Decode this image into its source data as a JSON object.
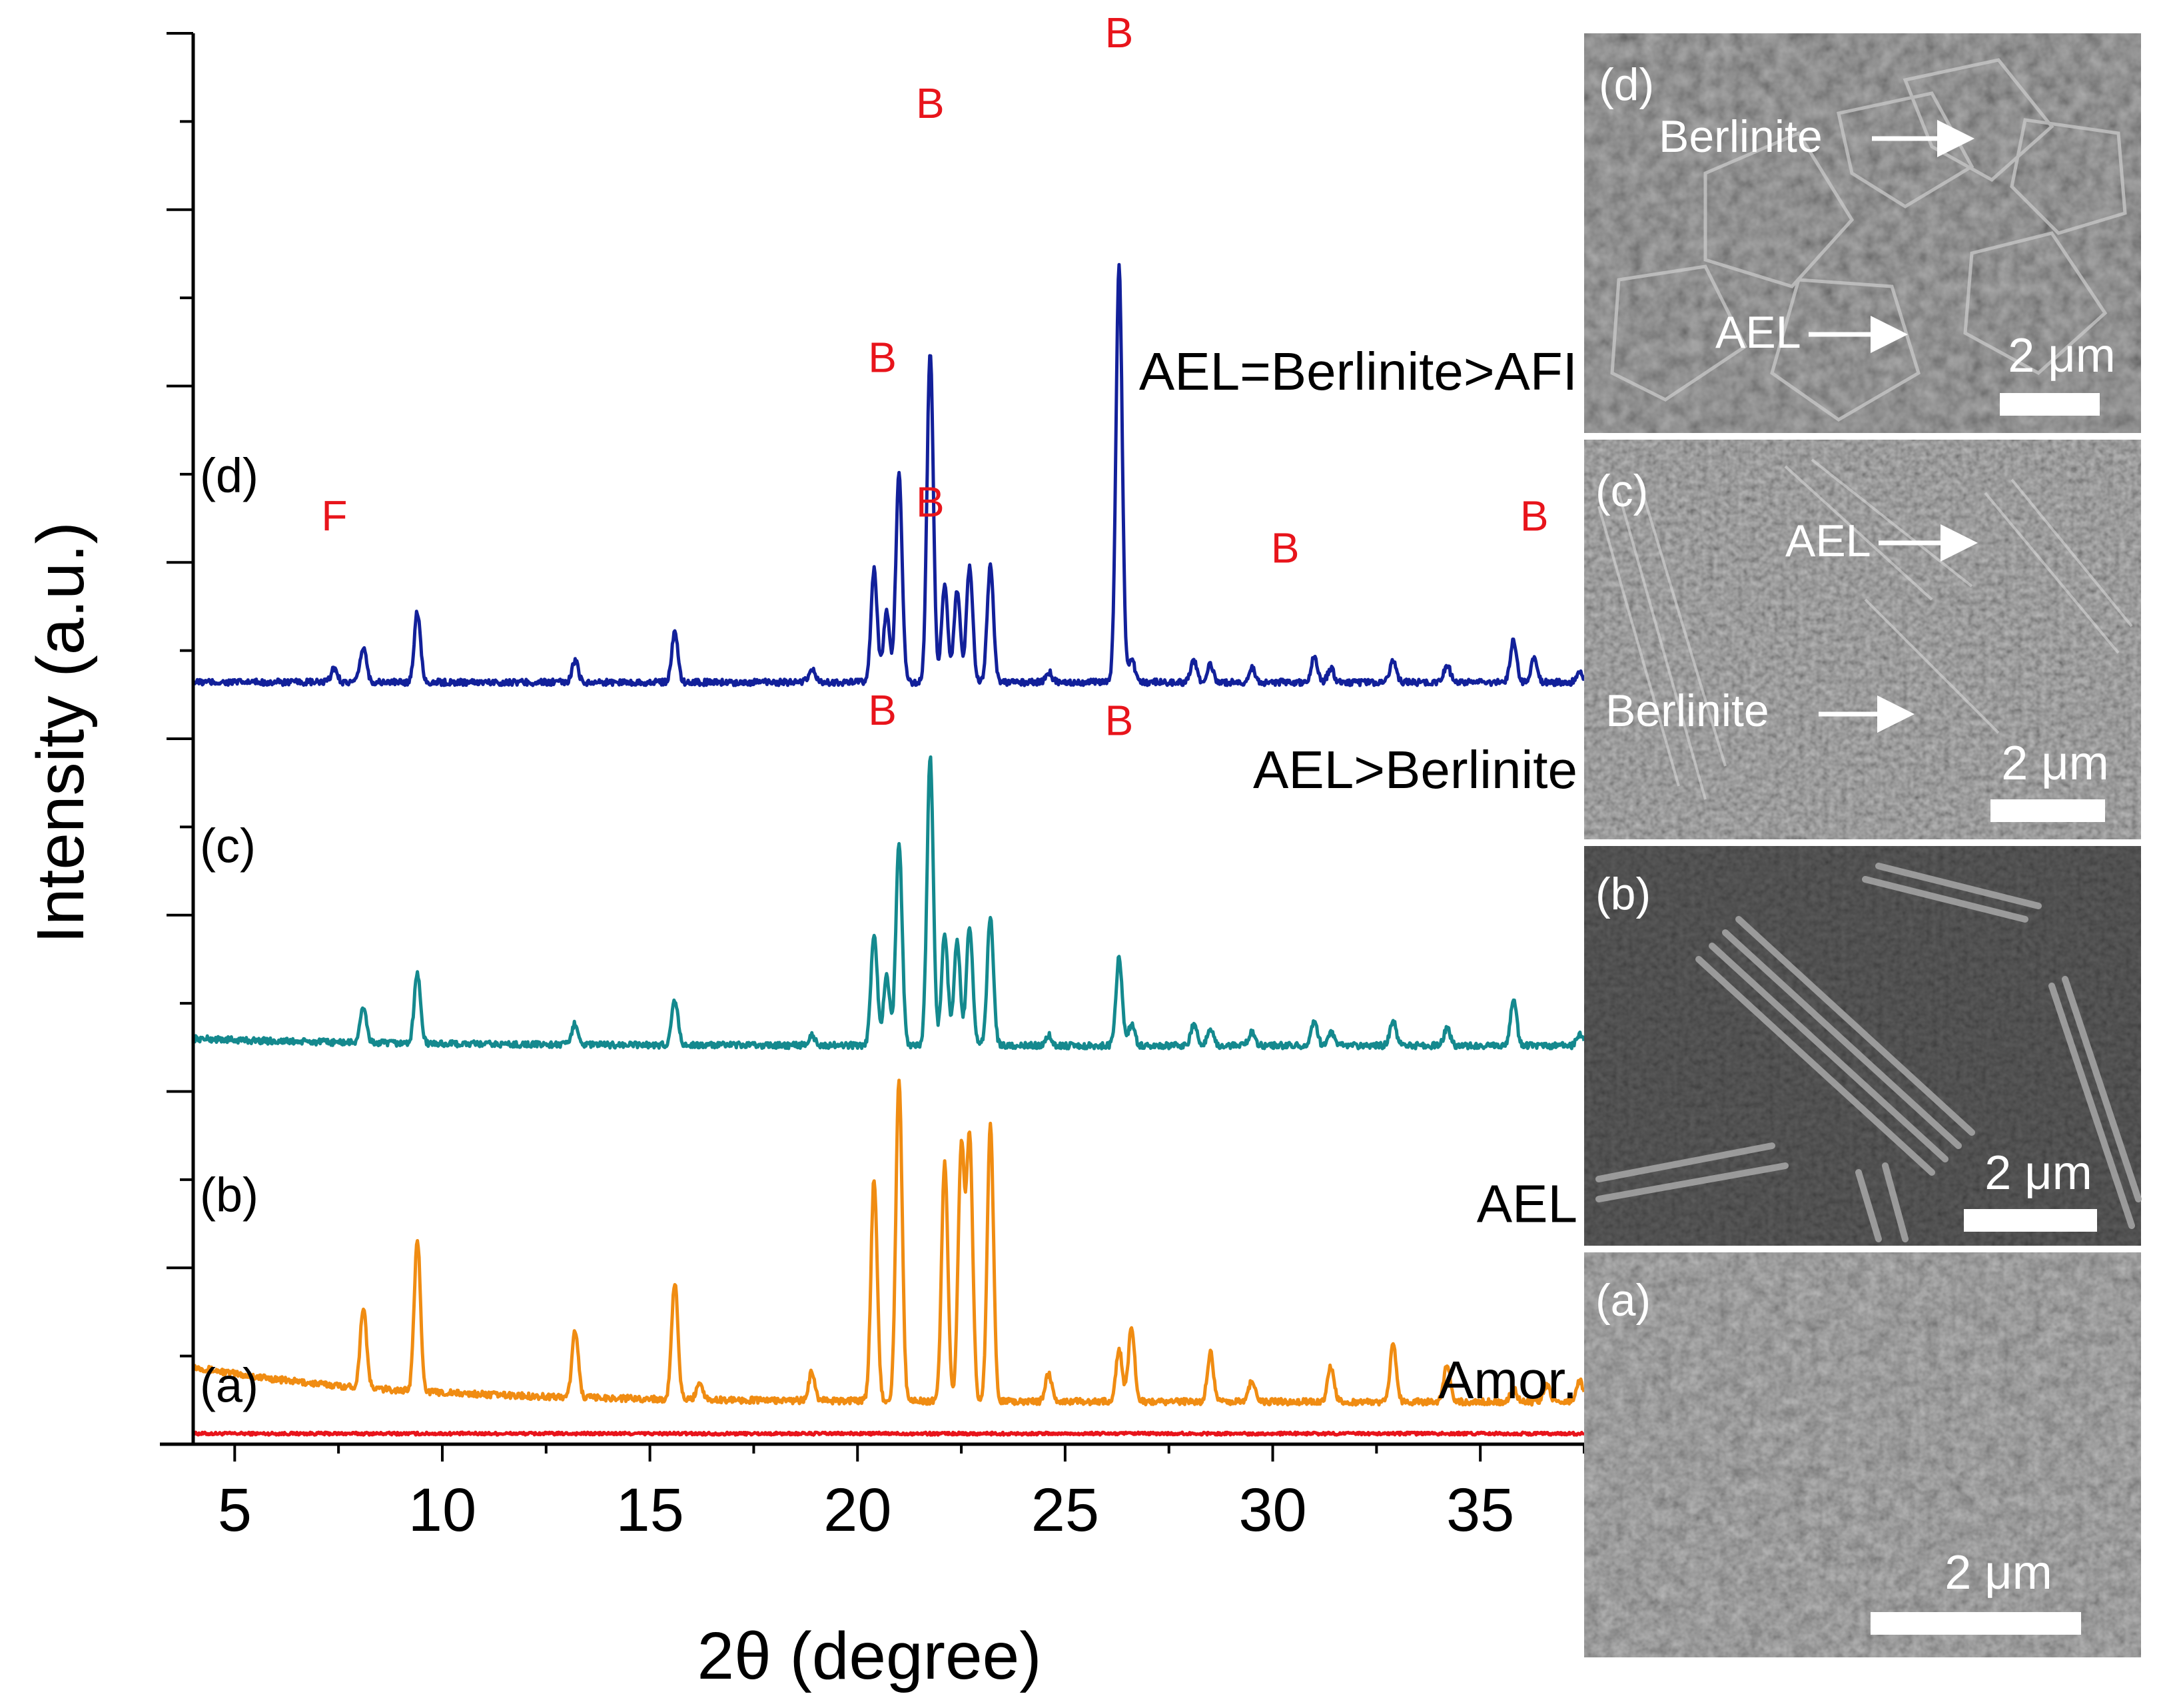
{
  "chart_data": {
    "type": "line",
    "xlabel": "2θ (degree)",
    "ylabel": "Intensity (a.u.)",
    "xlim": [
      4,
      37.5
    ],
    "xticks": [
      "5",
      "10",
      "15",
      "20",
      "25",
      "30",
      "35"
    ],
    "series": [
      {
        "id": "a",
        "name": "(a)",
        "phase": "Amor.",
        "color": "#e8141b",
        "baseline": 0.3,
        "slope": 0,
        "peaks": []
      },
      {
        "id": "b",
        "name": "(b)",
        "phase": "AEL",
        "color": "#f08c12",
        "baseline": 1.2,
        "slope": 1.0,
        "peaks": [
          [
            8.1,
            2.3
          ],
          [
            9.4,
            4.3
          ],
          [
            13.2,
            1.9
          ],
          [
            15.6,
            3.3
          ],
          [
            16.2,
            0.5
          ],
          [
            18.9,
            0.8
          ],
          [
            20.4,
            6.3
          ],
          [
            21.0,
            9.1
          ],
          [
            22.1,
            6.8
          ],
          [
            22.5,
            7.2
          ],
          [
            22.7,
            7.4
          ],
          [
            23.2,
            7.9
          ],
          [
            24.6,
            0.8
          ],
          [
            26.3,
            1.5
          ],
          [
            26.6,
            2.1
          ],
          [
            28.5,
            1.4
          ],
          [
            29.5,
            0.6
          ],
          [
            31.4,
            1.0
          ],
          [
            32.9,
            1.6
          ],
          [
            34.2,
            1.1
          ],
          [
            35.8,
            0.4
          ],
          [
            36.6,
            0.5
          ],
          [
            37.4,
            0.6
          ]
        ]
      },
      {
        "id": "c",
        "name": "(c)",
        "phase": "AEL>Berlinite",
        "color": "#14898e",
        "baseline": 11.3,
        "slope": 0.2,
        "peaks": [
          [
            8.1,
            1.0
          ],
          [
            9.4,
            2.0
          ],
          [
            13.2,
            0.6
          ],
          [
            15.6,
            1.3
          ],
          [
            18.9,
            0.3
          ],
          [
            20.4,
            3.2
          ],
          [
            20.7,
            2.0
          ],
          [
            21.0,
            5.7
          ],
          [
            21.75,
            8.2
          ],
          [
            22.1,
            3.2
          ],
          [
            22.4,
            3.0
          ],
          [
            22.7,
            3.4
          ],
          [
            23.2,
            3.7
          ],
          [
            24.6,
            0.3
          ],
          [
            26.3,
            2.5
          ],
          [
            26.6,
            0.6
          ],
          [
            28.1,
            0.6
          ],
          [
            28.5,
            0.5
          ],
          [
            29.5,
            0.4
          ],
          [
            31.0,
            0.7
          ],
          [
            31.4,
            0.4
          ],
          [
            32.9,
            0.7
          ],
          [
            34.2,
            0.5
          ],
          [
            35.8,
            1.3
          ],
          [
            37.4,
            0.3
          ]
        ]
      },
      {
        "id": "d",
        "name": "(d)",
        "phase": "AEL=Berlinite>AFI",
        "color": "#12209a",
        "baseline": 21.6,
        "slope": 0,
        "peaks": [
          [
            7.4,
            0.4
          ],
          [
            8.1,
            1.0
          ],
          [
            9.4,
            2.0
          ],
          [
            13.2,
            0.6
          ],
          [
            15.6,
            1.4
          ],
          [
            18.9,
            0.4
          ],
          [
            20.4,
            3.2
          ],
          [
            20.7,
            2.0
          ],
          [
            21.0,
            5.9
          ],
          [
            21.75,
            9.4
          ],
          [
            22.1,
            2.7
          ],
          [
            22.4,
            2.6
          ],
          [
            22.7,
            3.3
          ],
          [
            23.2,
            3.3
          ],
          [
            24.6,
            0.3
          ],
          [
            26.3,
            11.8
          ],
          [
            26.6,
            0.7
          ],
          [
            28.1,
            0.6
          ],
          [
            28.5,
            0.5
          ],
          [
            29.5,
            0.4
          ],
          [
            31.0,
            0.7
          ],
          [
            31.4,
            0.4
          ],
          [
            32.9,
            0.6
          ],
          [
            34.2,
            0.5
          ],
          [
            35.8,
            1.2
          ],
          [
            36.3,
            0.7
          ],
          [
            37.4,
            0.3
          ]
        ]
      }
    ],
    "ylim": [
      0,
      40
    ],
    "peak_markers": [
      {
        "series": "d",
        "label": "F",
        "x": 7.4,
        "y": 25.9
      },
      {
        "series": "d",
        "label": "B",
        "x": 20.6,
        "y": 30.4
      },
      {
        "series": "d",
        "label": "B",
        "x": 21.75,
        "y": 37.6
      },
      {
        "series": "d",
        "label": "B",
        "x": 26.3,
        "y": 39.6
      },
      {
        "series": "d",
        "label": "B",
        "x": 30.3,
        "y": 25.0
      },
      {
        "series": "d",
        "label": "B",
        "x": 36.3,
        "y": 25.9
      },
      {
        "series": "c",
        "label": "B",
        "x": 20.6,
        "y": 20.4
      },
      {
        "series": "c",
        "label": "B",
        "x": 21.75,
        "y": 26.3
      },
      {
        "series": "c",
        "label": "B",
        "x": 26.3,
        "y": 20.1
      }
    ]
  },
  "sem_panels": [
    {
      "id": "d",
      "label": "(d)",
      "scale": "2 μm",
      "annotations": [
        {
          "text": "Berlinite"
        },
        {
          "text": "AEL"
        }
      ]
    },
    {
      "id": "c",
      "label": "(c)",
      "scale": "2 μm",
      "annotations": [
        {
          "text": "AEL"
        },
        {
          "text": "Berlinite"
        }
      ]
    },
    {
      "id": "b",
      "label": "(b)",
      "scale": "2 μm",
      "annotations": []
    },
    {
      "id": "a",
      "label": "(a)",
      "scale": "2 μm",
      "annotations": []
    }
  ]
}
